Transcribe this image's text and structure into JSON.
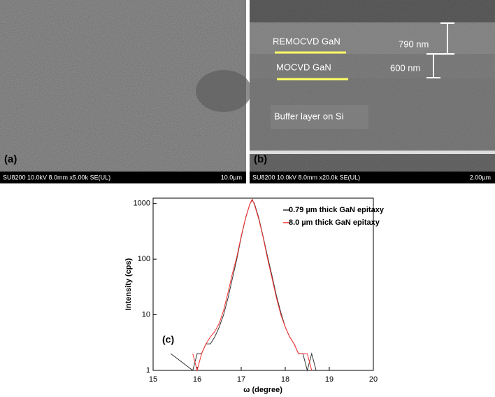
{
  "panels": [
    {
      "label": "(a)",
      "info": "SU8200 10.0kV 8.0mm x5.00k SE(UL)",
      "scale": "10.0µm"
    },
    {
      "label": "(b)",
      "info": "SU8200 10.0kV 8.0mm x20.0k SE(UL)",
      "scale": "2.00µm",
      "annotations": [
        "REMOCVD GaN",
        "MOCVD GaN",
        "790 nm",
        "600 nm",
        "Buffer layer on Si"
      ]
    }
  ],
  "chart_data": {
    "type": "line",
    "panel_label": "(c)",
    "xlabel": "ω (degree)",
    "ylabel": "Intensity (cps)",
    "log_y": true,
    "legend": "upper right",
    "xlim": [
      15,
      20
    ],
    "xticks": [
      15,
      16,
      17,
      18,
      19,
      20
    ],
    "ylim": [
      1,
      1250
    ],
    "yticks": [
      1,
      10,
      100,
      1000
    ],
    "x": [
      15.4,
      15.9,
      16.0,
      16.1,
      16.2,
      16.3,
      16.4,
      16.5,
      16.6,
      16.7,
      16.8,
      16.9,
      17.0,
      17.1,
      17.2,
      17.25,
      17.3,
      17.4,
      17.5,
      17.6,
      17.7,
      17.8,
      17.9,
      18.0,
      18.1,
      18.2,
      18.3,
      18.4,
      18.5,
      18.6,
      18.7
    ],
    "series": [
      {
        "name": "0.79 µm thick GaN epitaxy",
        "color": "#333333",
        "values": [
          2,
          1,
          2,
          2,
          3,
          3,
          4,
          6,
          10,
          20,
          45,
          100,
          250,
          550,
          1000,
          1150,
          1000,
          550,
          250,
          110,
          50,
          22,
          11,
          6,
          4,
          3,
          2,
          2,
          1,
          2,
          1
        ]
      },
      {
        "name": "8.0 µm thick GaN epitaxy",
        "color": "#ff3030",
        "values": [
          null,
          2,
          1,
          2,
          3,
          4,
          5,
          7,
          12,
          25,
          55,
          110,
          260,
          560,
          1000,
          1200,
          950,
          520,
          240,
          100,
          45,
          20,
          10,
          6,
          4,
          3,
          2,
          2,
          2,
          1,
          null
        ]
      }
    ]
  }
}
